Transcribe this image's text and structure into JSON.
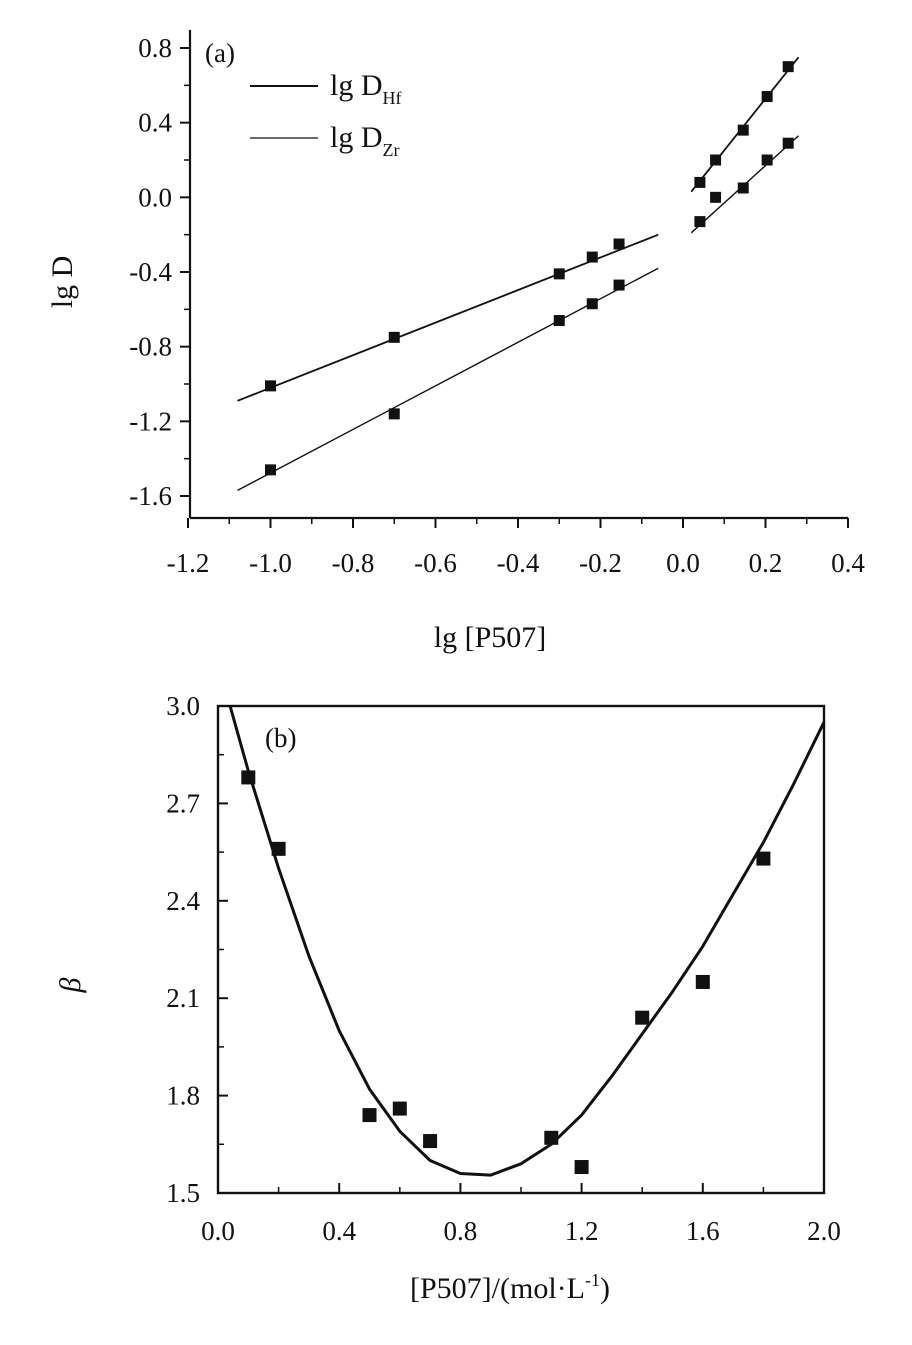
{
  "chart_data": [
    {
      "panel": "(a)",
      "type": "scatter",
      "xlabel": "lg [P507]",
      "ylabel": "lg D",
      "xlim": [
        -1.2,
        0.4
      ],
      "ylim": [
        -1.7,
        0.85
      ],
      "xticks": [
        "-1.2",
        "-1.0",
        "-0.8",
        "-0.6",
        "-0.4",
        "-0.2",
        "0.0",
        "0.2",
        "0.4"
      ],
      "yticks": [
        "0.8",
        "0.4",
        "0.0",
        "-0.4",
        "-0.8",
        "-1.2",
        "-1.6"
      ],
      "legend": {
        "position": "top-left",
        "entries": [
          {
            "main": "lg D",
            "sub": "Hf"
          },
          {
            "main": "lg D",
            "sub": "Zr"
          }
        ]
      },
      "series": [
        {
          "name": "lg D_Hf",
          "points": [
            [
              -1.0,
              -1.01
            ],
            [
              -0.7,
              -0.75
            ],
            [
              -0.3,
              -0.41
            ],
            [
              -0.22,
              -0.32
            ],
            [
              -0.155,
              -0.25
            ],
            [
              0.041,
              0.08
            ],
            [
              0.079,
              0.2
            ],
            [
              0.146,
              0.36
            ],
            [
              0.204,
              0.54
            ],
            [
              0.255,
              0.7
            ]
          ],
          "fit_segments": [
            {
              "x": [
                -1.08,
                -0.06
              ],
              "y": [
                -1.09,
                -0.2
              ]
            },
            {
              "x": [
                0.02,
                0.28
              ],
              "y": [
                0.03,
                0.75
              ]
            }
          ]
        },
        {
          "name": "lg D_Zr",
          "points": [
            [
              -1.0,
              -1.46
            ],
            [
              -0.7,
              -1.16
            ],
            [
              -0.3,
              -0.66
            ],
            [
              -0.22,
              -0.57
            ],
            [
              -0.155,
              -0.47
            ],
            [
              0.041,
              -0.13
            ],
            [
              0.079,
              0.0
            ],
            [
              0.146,
              0.05
            ],
            [
              0.204,
              0.2
            ],
            [
              0.255,
              0.29
            ]
          ],
          "fit_segments": [
            {
              "x": [
                -1.08,
                -0.06
              ],
              "y": [
                -1.57,
                -0.38
              ]
            },
            {
              "x": [
                0.02,
                0.28
              ],
              "y": [
                -0.19,
                0.33
              ]
            }
          ]
        }
      ]
    },
    {
      "panel": "(b)",
      "type": "scatter",
      "xlabel_main": "[P507]/(mol·L",
      "xlabel_sup": "-1",
      "xlabel_end": ")",
      "ylabel": "β",
      "xlim": [
        0.0,
        2.0
      ],
      "ylim": [
        1.5,
        3.0
      ],
      "xticks": [
        "0.0",
        "0.4",
        "0.8",
        "1.2",
        "1.6",
        "2.0"
      ],
      "yticks": [
        "3.0",
        "2.7",
        "2.4",
        "2.1",
        "1.8",
        "1.5"
      ],
      "series": [
        {
          "name": "β",
          "points": [
            [
              0.1,
              2.78
            ],
            [
              0.2,
              2.56
            ],
            [
              0.5,
              1.74
            ],
            [
              0.6,
              1.76
            ],
            [
              0.7,
              1.66
            ],
            [
              1.1,
              1.67
            ],
            [
              1.2,
              1.58
            ],
            [
              1.4,
              2.04
            ],
            [
              1.6,
              2.15
            ],
            [
              1.8,
              2.53
            ]
          ],
          "fit_curve": {
            "x": [
              0.04,
              0.1,
              0.2,
              0.3,
              0.4,
              0.5,
              0.6,
              0.7,
              0.8,
              0.9,
              1.0,
              1.1,
              1.2,
              1.3,
              1.4,
              1.5,
              1.6,
              1.7,
              1.8,
              1.9,
              2.0
            ],
            "y": [
              3.0,
              2.8,
              2.5,
              2.23,
              2.0,
              1.82,
              1.69,
              1.6,
              1.56,
              1.555,
              1.59,
              1.65,
              1.74,
              1.86,
              1.99,
              2.12,
              2.26,
              2.42,
              2.58,
              2.76,
              2.95
            ]
          }
        }
      ]
    }
  ]
}
